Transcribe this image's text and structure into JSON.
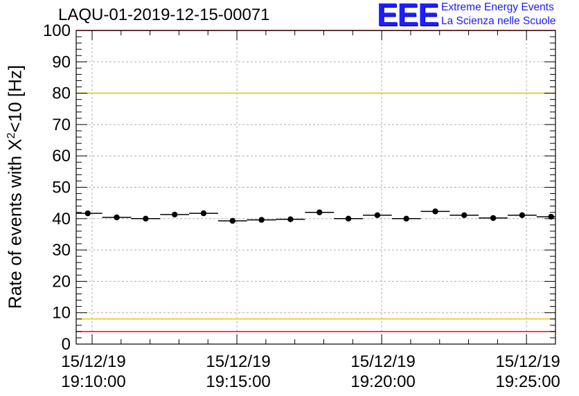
{
  "header": {
    "run_title": "LAQU-01-2019-12-15-00071"
  },
  "logo": {
    "mark": "EEE",
    "line1": "Extreme Energy Events",
    "line2": "La Scienza nelle Scuole"
  },
  "colors": {
    "frame": "#000000",
    "grid": "#b0b0b0",
    "red_threshold": "#ff0000",
    "yellow_threshold": "#f0c800",
    "marker": "#000000",
    "logo_blue": "#1e1eff"
  },
  "chart_data": {
    "type": "scatter",
    "title": "LAQU-01-2019-12-15-00071",
    "xlabel": "",
    "ylabel_prefix": "Rate of events with X",
    "ylabel_sup": "2",
    "ylabel_suffix": "<10 [Hz]",
    "ylim": [
      0,
      100
    ],
    "yticks": [
      "0",
      "10",
      "20",
      "30",
      "40",
      "50",
      "60",
      "70",
      "80",
      "90",
      "100"
    ],
    "xlim_minutes": [
      -0.55,
      16.0
    ],
    "xticks": [
      {
        "t": 0,
        "date": "15/12/19",
        "time": "19:10:00"
      },
      {
        "t": 5,
        "date": "15/12/19",
        "time": "19:15:00"
      },
      {
        "t": 10,
        "date": "15/12/19",
        "time": "19:20:00"
      },
      {
        "t": 15,
        "date": "15/12/19",
        "time": "19:25:00"
      }
    ],
    "bin_width_minutes": 1,
    "series": [
      {
        "name": "rate",
        "x": [
          -0.15,
          0.85,
          1.85,
          2.85,
          3.85,
          4.85,
          5.85,
          6.85,
          7.85,
          8.85,
          9.85,
          10.85,
          11.85,
          12.85,
          13.85,
          14.85,
          15.85
        ],
        "values": [
          41.7,
          40.4,
          40.0,
          41.3,
          41.7,
          39.3,
          39.6,
          39.8,
          42.0,
          40.0,
          41.1,
          40.0,
          42.3,
          41.1,
          40.2,
          41.1,
          40.6
        ]
      }
    ],
    "threshold_lines": [
      {
        "name": "upper-red",
        "value": 100,
        "color": "#ff0000"
      },
      {
        "name": "upper-yellow",
        "value": 80,
        "color": "#f0c800"
      },
      {
        "name": "lower-yellow",
        "value": 8,
        "color": "#f0c800"
      },
      {
        "name": "lower-red",
        "value": 4,
        "color": "#ff0000"
      }
    ],
    "grid": true,
    "legend": "none"
  }
}
